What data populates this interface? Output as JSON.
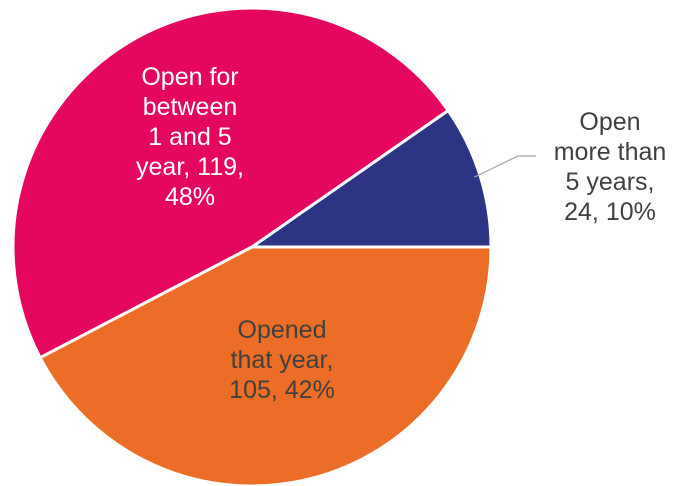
{
  "chart_data": {
    "type": "pie",
    "title": "",
    "start_angle_deg": 0,
    "direction": "counterclockwise",
    "slices": [
      {
        "name": "Open more than 5 years",
        "value": 24,
        "percent": "10%",
        "label_lines": [
          "Open",
          "more than",
          "5 years,",
          "24, 10%"
        ],
        "color": "#2B3583",
        "label_color": "#404040",
        "label_outside": true
      },
      {
        "name": "Open for between 1 and 5 year",
        "value": 119,
        "percent": "48%",
        "label_lines": [
          "Open for",
          "between",
          "1 and 5",
          "year, 119,",
          "48%"
        ],
        "color": "#E4065F",
        "label_color": "#ffffff",
        "label_outside": false
      },
      {
        "name": "Opened that year",
        "value": 105,
        "percent": "42%",
        "label_lines": [
          "Opened",
          "that year,",
          "105, 42%"
        ],
        "color": "#EC6D26",
        "label_color": "#404040",
        "label_outside": false
      }
    ]
  }
}
